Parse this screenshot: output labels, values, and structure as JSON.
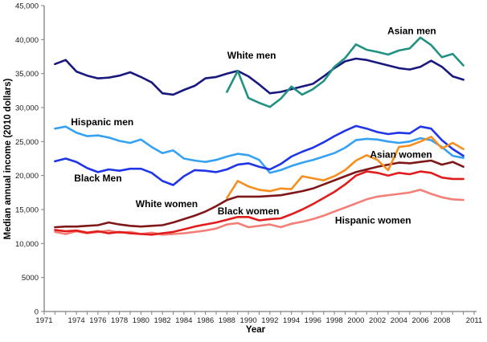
{
  "figure": {
    "background": "#ffffff",
    "axis_color": "#7f7f7f",
    "tick_label_color": "#1a1a1a"
  },
  "chart_data": {
    "type": "line",
    "title": "",
    "xlabel": "Year",
    "ylabel": "Median annual income (2010 dollars)",
    "xlim": [
      1971,
      2011
    ],
    "ylim": [
      0,
      45000
    ],
    "grid": false,
    "legend_position": "inline-annotations",
    "x_minor_tick_years": {
      "start": 1971,
      "end": 2011,
      "step": 1
    },
    "x_tick_labels": [
      {
        "year": 1971,
        "label": "1971"
      },
      {
        "year": 1974,
        "label": "1974"
      },
      {
        "year": 1976,
        "label": "1976"
      },
      {
        "year": 1978,
        "label": "1978"
      },
      {
        "year": 1980,
        "label": "1980"
      },
      {
        "year": 1982,
        "label": "1982"
      },
      {
        "year": 1984,
        "label": "1984"
      },
      {
        "year": 1986,
        "label": "1986"
      },
      {
        "year": 1988,
        "label": "1988"
      },
      {
        "year": 1990,
        "label": "1990"
      },
      {
        "year": 1992,
        "label": "1992"
      },
      {
        "year": 1994,
        "label": "1994"
      },
      {
        "year": 1996,
        "label": "1996"
      },
      {
        "year": 1998,
        "label": "1998"
      },
      {
        "year": 2000,
        "label": "2000"
      },
      {
        "year": 2002,
        "label": "2002"
      },
      {
        "year": 2004,
        "label": "2004"
      },
      {
        "year": 2006,
        "label": "2006"
      },
      {
        "year": 2008,
        "label": "2008"
      },
      {
        "year": 2011,
        "label": "2011"
      }
    ],
    "y_ticks": [
      {
        "value": 45000,
        "label": "45,000"
      },
      {
        "value": 40000,
        "label": "40,000"
      },
      {
        "value": 35000,
        "label": "35,000"
      },
      {
        "value": 30000,
        "label": "30,000"
      },
      {
        "value": 25000,
        "label": "25,000"
      },
      {
        "value": 20000,
        "label": "20,000"
      },
      {
        "value": 15000,
        "label": "15,000"
      },
      {
        "value": 10000,
        "label": "10,000"
      },
      {
        "value": 5000,
        "label": "5000"
      },
      {
        "value": 0,
        "label": "0"
      }
    ],
    "series": [
      {
        "name": "White men",
        "color": "#18187e",
        "start_year": 1972,
        "values": [
          36400,
          37000,
          35300,
          34700,
          34300,
          34400,
          34700,
          35200,
          34500,
          33700,
          32100,
          31900,
          32600,
          33200,
          34300,
          34500,
          35000,
          35400,
          34600,
          33400,
          32100,
          32300,
          32700,
          33100,
          33500,
          34600,
          35800,
          36800,
          37200,
          37000,
          36600,
          36200,
          35800,
          35600,
          36000,
          36900,
          36000,
          34600,
          34100
        ]
      },
      {
        "name": "Asian men",
        "color": "#239182",
        "start_year": 1988,
        "values": [
          32300,
          35400,
          31400,
          30700,
          30100,
          31300,
          33100,
          31900,
          32700,
          33900,
          36000,
          37300,
          39300,
          38500,
          38200,
          37800,
          38400,
          38700,
          40300,
          39200,
          37400,
          37900,
          36200
        ]
      },
      {
        "name": "Hispanic men",
        "color": "#35a1f3",
        "start_year": 1972,
        "values": [
          26900,
          27200,
          26300,
          25800,
          25900,
          25600,
          25100,
          24800,
          25300,
          24200,
          23300,
          23700,
          22500,
          22200,
          22000,
          22300,
          22800,
          23200,
          23000,
          22300,
          20400,
          20800,
          21400,
          21900,
          22300,
          22800,
          23300,
          24100,
          25200,
          25400,
          25300,
          25000,
          24800,
          25000,
          25500,
          25200,
          24200,
          22900,
          22600
        ]
      },
      {
        "name": "Black Men",
        "color": "#1f35e6",
        "start_year": 1972,
        "values": [
          22100,
          22500,
          22000,
          21100,
          20500,
          20900,
          20700,
          21000,
          21000,
          20400,
          19200,
          18600,
          19900,
          20800,
          20700,
          20500,
          20900,
          21600,
          21800,
          21300,
          20900,
          21700,
          22800,
          23500,
          24100,
          24900,
          25800,
          26600,
          27300,
          26900,
          26400,
          26100,
          26300,
          26200,
          27200,
          26900,
          25200,
          23900,
          22900
        ]
      },
      {
        "name": "Hispanic women",
        "color": "#f28078",
        "start_year": 1972,
        "values": [
          11700,
          11400,
          11800,
          11500,
          11700,
          11900,
          11600,
          11700,
          11400,
          11600,
          11300,
          11400,
          11500,
          11700,
          11900,
          12200,
          12800,
          13000,
          12400,
          12600,
          12800,
          12400,
          12900,
          13200,
          13600,
          14100,
          14700,
          15300,
          15900,
          16500,
          16900,
          17100,
          17300,
          17500,
          17900,
          17300,
          16800,
          16500,
          16400
        ]
      },
      {
        "name": "Black women",
        "color": "#e11c1c",
        "start_year": 1972,
        "values": [
          12000,
          11800,
          11900,
          11600,
          11800,
          11500,
          11700,
          11500,
          11400,
          11300,
          11500,
          11700,
          12100,
          12500,
          12800,
          13100,
          13500,
          13900,
          13900,
          13400,
          13600,
          13700,
          14300,
          15000,
          15800,
          16700,
          17600,
          18700,
          20000,
          20600,
          20400,
          20000,
          20400,
          20200,
          20600,
          20400,
          19700,
          19500,
          19500
        ]
      },
      {
        "name": "White women",
        "color": "#801717",
        "start_year": 1972,
        "values": [
          12400,
          12500,
          12500,
          12600,
          12700,
          13100,
          12800,
          12600,
          12500,
          12600,
          12700,
          13100,
          13600,
          14100,
          14700,
          15500,
          16400,
          16900,
          16900,
          16900,
          17000,
          17100,
          17400,
          17700,
          18100,
          18700,
          19300,
          19900,
          20500,
          20900,
          21300,
          21600,
          21900,
          21800,
          22000,
          22200,
          21600,
          22000,
          21300
        ]
      },
      {
        "name": "Asian women",
        "color": "#f78f1e",
        "start_year": 1988,
        "values": [
          16700,
          19200,
          18400,
          17900,
          17700,
          18100,
          18000,
          19900,
          19600,
          19300,
          19900,
          20800,
          22200,
          23000,
          22300,
          20800,
          24200,
          24400,
          25000,
          25700,
          24000,
          24800,
          23900
        ]
      }
    ],
    "annotations": [
      {
        "text": "White men",
        "x": 1990.3,
        "y": 37700
      },
      {
        "text": "Asian men",
        "x": 2005.2,
        "y": 41300
      },
      {
        "text": "Hispanic men",
        "x": 1976.4,
        "y": 27900
      },
      {
        "text": "Black Men",
        "x": 1976.0,
        "y": 19600
      },
      {
        "text": "White women",
        "x": 1982.4,
        "y": 15800
      },
      {
        "text": "Black women",
        "x": 1990.0,
        "y": 14750
      },
      {
        "text": "Asian women",
        "x": 2004.2,
        "y": 23100
      },
      {
        "text": "Hispanic women",
        "x": 2001.6,
        "y": 13400
      }
    ]
  }
}
